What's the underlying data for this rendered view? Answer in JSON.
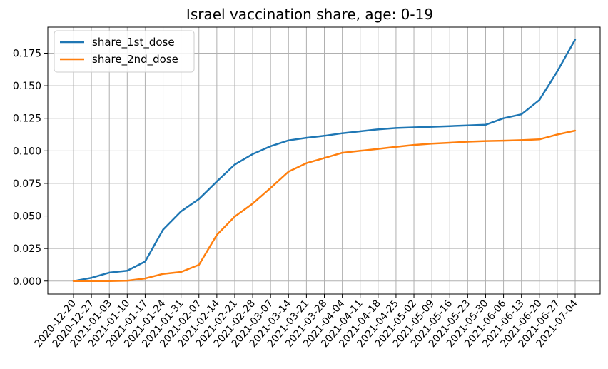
{
  "chart_data": {
    "type": "line",
    "title": "Israel vaccination share, age: 0-19",
    "xlabel": "",
    "ylabel": "",
    "grid": true,
    "legend_position": "top-left",
    "ylim": [
      -0.01,
      0.195
    ],
    "yticks": [
      0.0,
      0.025,
      0.05,
      0.075,
      0.1,
      0.125,
      0.15,
      0.175
    ],
    "ytick_labels": [
      "0.000",
      "0.025",
      "0.050",
      "0.075",
      "0.100",
      "0.125",
      "0.150",
      "0.175"
    ],
    "x": [
      "2020-12-20",
      "2020-12-27",
      "2021-01-03",
      "2021-01-10",
      "2021-01-17",
      "2021-01-24",
      "2021-01-31",
      "2021-02-07",
      "2021-02-14",
      "2021-02-21",
      "2021-02-28",
      "2021-03-07",
      "2021-03-14",
      "2021-03-21",
      "2021-03-28",
      "2021-04-04",
      "2021-04-11",
      "2021-04-18",
      "2021-04-25",
      "2021-05-02",
      "2021-05-09",
      "2021-05-16",
      "2021-05-23",
      "2021-05-30",
      "2021-06-06",
      "2021-06-13",
      "2021-06-20",
      "2021-06-27",
      "2021-07-04"
    ],
    "series": [
      {
        "name": "share_1st_dose",
        "color": "#1f77b4",
        "values": [
          0.0,
          0.0025,
          0.0065,
          0.008,
          0.015,
          0.0395,
          0.0535,
          0.063,
          0.0765,
          0.0895,
          0.0975,
          0.1035,
          0.108,
          0.11,
          0.1115,
          0.1135,
          0.115,
          0.1165,
          0.1175,
          0.118,
          0.1185,
          0.119,
          0.1195,
          0.12,
          0.125,
          0.128,
          0.139,
          0.161,
          0.1855
        ]
      },
      {
        "name": "share_2nd_dose",
        "color": "#ff7f0e",
        "values": [
          0.0,
          0.0,
          0.0,
          0.0003,
          0.002,
          0.0055,
          0.007,
          0.0125,
          0.0355,
          0.0495,
          0.0595,
          0.0715,
          0.084,
          0.0905,
          0.0945,
          0.0985,
          0.1,
          0.1015,
          0.103,
          0.1045,
          0.1055,
          0.1062,
          0.107,
          0.1075,
          0.1078,
          0.1082,
          0.1088,
          0.1125,
          0.1155
        ]
      }
    ]
  }
}
